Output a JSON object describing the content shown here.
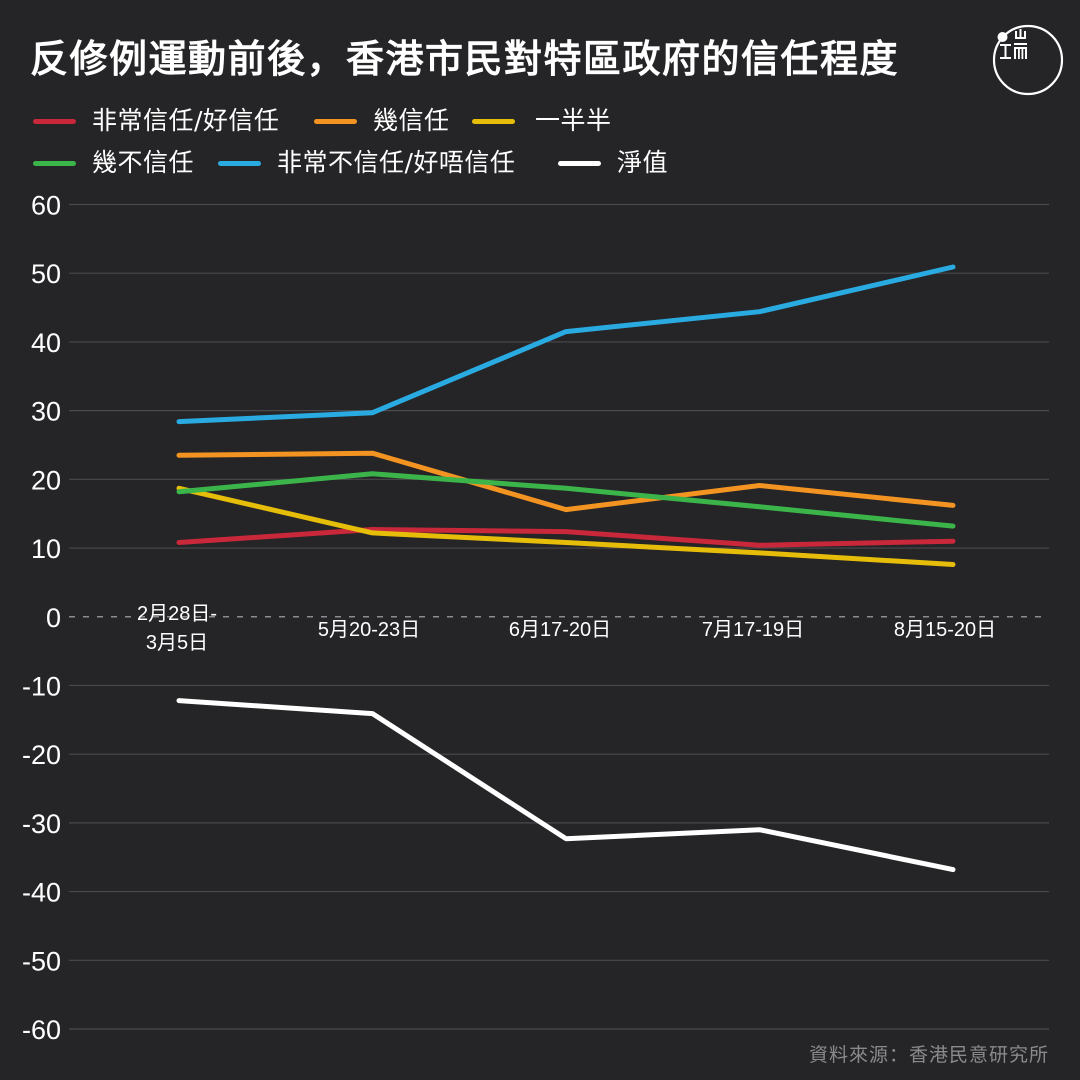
{
  "title": "反修例運動前後，香港市民對特區政府的信任程度",
  "logo_text": [
    "山",
    "工",
    "而"
  ],
  "source": "資料來源：香港民意研究所",
  "colors": {
    "background": "#252427",
    "grid": "#4a494c",
    "zero": "#8d8c90"
  },
  "chart_data": {
    "type": "line",
    "title": "反修例運動前後，香港市民對特區政府的信任程度",
    "xlabel": "",
    "ylabel": "",
    "ylim": [
      -60,
      60
    ],
    "yticks": [
      60,
      50,
      40,
      30,
      20,
      10,
      0,
      -10,
      -20,
      -30,
      -40,
      -50,
      -60
    ],
    "ytick_labels": [
      "60",
      "50",
      "40",
      "30",
      "20",
      "10",
      "0",
      "-10",
      "-20",
      "-30",
      "-40",
      "-50",
      "-60"
    ],
    "grid": true,
    "legend_placement": "top-left",
    "categories": [
      [
        "2月28日-",
        "3月5日"
      ],
      [
        "5月20-23日"
      ],
      [
        "6月17-20日"
      ],
      [
        "7月17-19日"
      ],
      [
        "8月15-20日"
      ]
    ],
    "series": [
      {
        "name": "非常信任/好信任",
        "color": "#c8283a",
        "values": [
          10.8,
          12.7,
          12.4,
          10.4,
          11.0
        ]
      },
      {
        "name": "幾信任",
        "color": "#f39422",
        "values": [
          23.5,
          23.8,
          15.6,
          19.1,
          16.2
        ]
      },
      {
        "name": "一半半",
        "color": "#e6be0a",
        "values": [
          18.7,
          12.2,
          10.8,
          9.3,
          7.6
        ]
      },
      {
        "name": "幾不信任",
        "color": "#3bb54a",
        "values": [
          18.2,
          20.8,
          18.7,
          16.0,
          13.2
        ]
      },
      {
        "name": "非常不信任/好唔信任",
        "color": "#29abe2",
        "values": [
          28.4,
          29.7,
          41.5,
          44.4,
          50.9
        ]
      },
      {
        "name": "淨值",
        "color": "#ffffff",
        "values": [
          -12.2,
          -14.1,
          -32.3,
          -31.0,
          -36.8
        ]
      }
    ]
  }
}
